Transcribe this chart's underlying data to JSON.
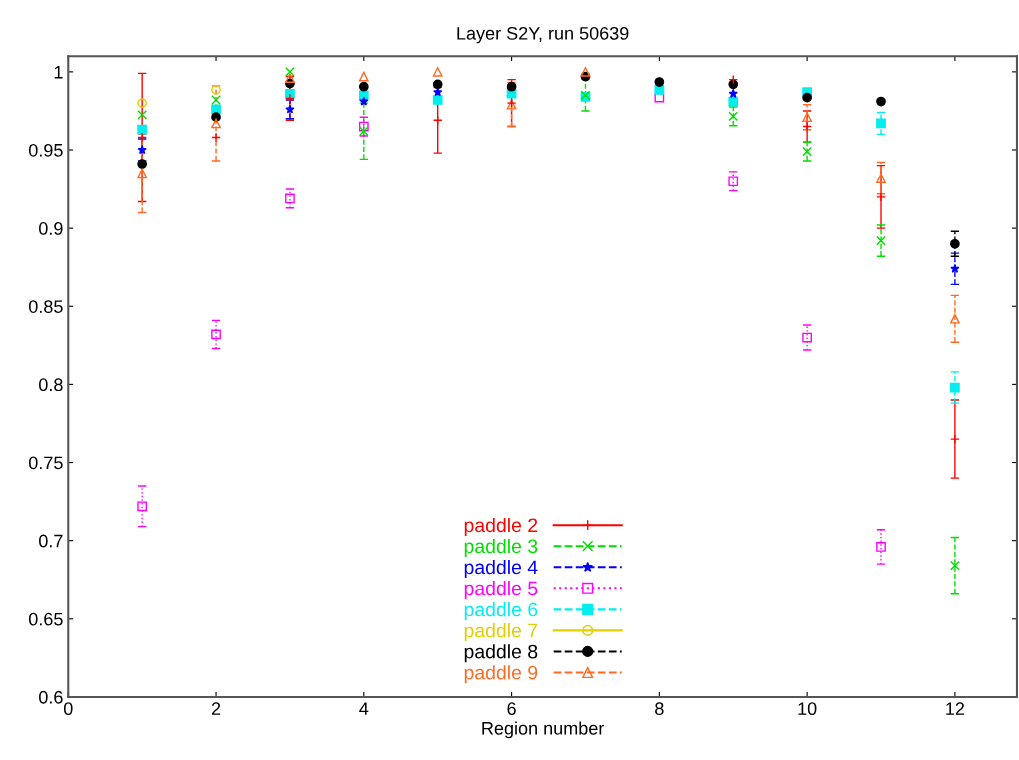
{
  "chart_data": {
    "type": "scatter",
    "title": "Layer S2Y, run 50639",
    "xlabel": "Region number",
    "x": [
      1,
      2,
      3,
      4,
      5,
      6,
      7,
      8,
      9,
      10,
      11,
      12
    ],
    "xlim": [
      0,
      12.84
    ],
    "xticks": [
      0,
      2,
      4,
      6,
      8,
      10,
      12
    ],
    "ylim": [
      0.6,
      1.01
    ],
    "yticks": [
      0.6,
      0.65,
      0.7,
      0.75,
      0.8,
      0.85,
      0.9,
      0.95,
      1
    ],
    "grid": false,
    "legend": "bottom",
    "series": [
      {
        "name": "paddle 2",
        "color": "#ff0000",
        "marker": "plus",
        "line_style": "solid",
        "values": [
          0.958,
          0.958,
          0.983,
          null,
          0.969,
          0.98,
          null,
          null,
          0.995,
          0.965,
          0.92,
          0.765
        ],
        "errors": [
          0.041,
          null,
          0.014,
          null,
          0.021,
          0.015,
          null,
          null,
          null,
          0.01,
          0.02,
          0.025
        ]
      },
      {
        "name": "paddle 3",
        "color": "#00dd00",
        "marker": "x",
        "line_style": "dashed",
        "values": [
          0.9725,
          0.982,
          1.0,
          0.962,
          null,
          null,
          0.985,
          null,
          0.9715,
          0.949,
          0.892,
          0.684
        ],
        "errors": [
          null,
          null,
          null,
          0.018,
          null,
          null,
          0.01,
          null,
          0.006,
          0.006,
          0.01,
          0.018
        ]
      },
      {
        "name": "paddle 4",
        "color": "#0000ff",
        "marker": "star",
        "line_style": "dashed",
        "values": [
          0.95,
          null,
          0.976,
          0.981,
          0.987,
          null,
          null,
          null,
          0.986,
          null,
          null,
          0.874
        ],
        "errors": [
          0.007,
          null,
          0.006,
          null,
          null,
          null,
          null,
          null,
          null,
          null,
          null,
          0.01
        ]
      },
      {
        "name": "paddle 5",
        "color": "#ff00ff",
        "marker": "square_open",
        "line_style": "dotted",
        "values": [
          0.722,
          0.832,
          0.919,
          0.965,
          null,
          null,
          null,
          0.9835,
          0.93,
          0.83,
          0.696,
          null
        ],
        "errors": [
          0.013,
          0.009,
          0.006,
          0.006,
          null,
          null,
          null,
          null,
          0.006,
          0.008,
          0.011,
          null
        ]
      },
      {
        "name": "paddle 6",
        "color": "#00eeee",
        "marker": "square",
        "line_style": "dashed",
        "values": [
          0.963,
          0.976,
          0.986,
          0.985,
          0.982,
          0.986,
          0.984,
          0.9885,
          0.981,
          0.987,
          0.967,
          0.798
        ],
        "errors": [
          null,
          null,
          null,
          null,
          null,
          null,
          null,
          null,
          null,
          null,
          0.007,
          0.01
        ]
      },
      {
        "name": "paddle 7",
        "color": "#e0d000",
        "marker": "circle_open",
        "line_style": "solid",
        "values": [
          0.98,
          0.9885,
          null,
          null,
          null,
          null,
          null,
          null,
          null,
          null,
          null,
          null
        ],
        "errors": [
          null,
          null,
          null,
          null,
          null,
          null,
          null,
          null,
          null,
          null,
          null,
          null
        ]
      },
      {
        "name": "paddle 8",
        "color": "#000000",
        "marker": "circle",
        "line_style": "dashed",
        "values": [
          0.941,
          0.971,
          0.9925,
          0.9905,
          0.992,
          0.9905,
          0.997,
          0.9935,
          0.992,
          0.9835,
          0.981,
          0.89
        ],
        "errors": [
          null,
          null,
          null,
          null,
          null,
          null,
          null,
          null,
          null,
          null,
          null,
          0.008
        ]
      },
      {
        "name": "paddle 9",
        "color": "#ff6a20",
        "marker": "triangle_open",
        "line_style": "dashed",
        "values": [
          0.935,
          0.967,
          0.996,
          0.997,
          1.0,
          0.979,
          1.0,
          null,
          null,
          0.971,
          0.932,
          0.842
        ],
        "errors": [
          0.025,
          0.024,
          null,
          null,
          null,
          0.014,
          null,
          null,
          null,
          0.008,
          0.01,
          0.015
        ]
      }
    ]
  }
}
